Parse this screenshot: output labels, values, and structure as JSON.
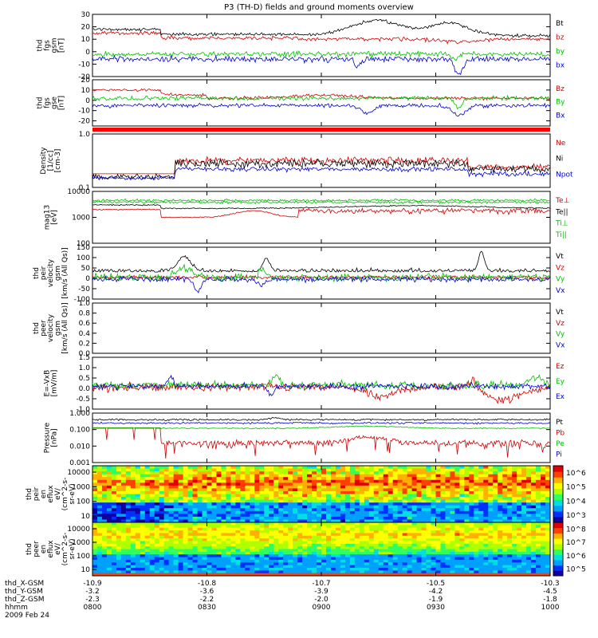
{
  "chart_data": {
    "type": "line",
    "title": "P3 (TH-D) fields and ground moments overview",
    "x_time_range": [
      "0800",
      "1000"
    ],
    "panels": [
      {
        "key": "fgs_gsm",
        "ylabel": [
          "thd",
          "fgs",
          "gsm",
          "[nT]"
        ],
        "ylim": [
          -20,
          30
        ],
        "yticks": [
          "-20",
          "-10",
          "0",
          "10",
          "20",
          "30"
        ],
        "series": [
          {
            "name": "Bt",
            "color": "#000000",
            "base": 18,
            "noise": 1.5,
            "kind": "bt"
          },
          {
            "name": "bz",
            "color": "#d00000",
            "base": 12,
            "noise": 2,
            "kind": "bz"
          },
          {
            "name": "by",
            "color": "#00c000",
            "base": -3,
            "noise": 2,
            "kind": "by"
          },
          {
            "name": "bx",
            "color": "#0000d0",
            "base": -6,
            "noise": 2.5,
            "kind": "bx"
          }
        ]
      },
      {
        "key": "fgs_gse",
        "ylabel": [
          "thd",
          "fgs",
          "gse",
          "[nT]"
        ],
        "ylim": [
          -25,
          20
        ],
        "yticks": [
          "-20",
          "-10",
          "0",
          "10",
          "20"
        ],
        "series": [
          {
            "name": "Bz",
            "color": "#d00000",
            "base": 10,
            "noise": 1.5,
            "kind": "bz2"
          },
          {
            "name": "By",
            "color": "#00c000",
            "base": 3,
            "noise": 2,
            "kind": "by2"
          },
          {
            "name": "Bx",
            "color": "#0000d0",
            "base": -5,
            "noise": 2,
            "kind": "bx2"
          }
        ]
      },
      {
        "key": "density",
        "ylabel": [
          "Density",
          "[1/cc]",
          "[cm-3]"
        ],
        "ylim": [
          0.1,
          1.0
        ],
        "log": true,
        "yticks": [
          "0.1",
          "1.0"
        ],
        "series": [
          {
            "name": "Ne",
            "color": "#d00000",
            "kind": "dens_e"
          },
          {
            "name": "Ni",
            "color": "#000000",
            "kind": "dens_i"
          },
          {
            "name": "Npot",
            "color": "#0000d0",
            "kind": "dens_p"
          }
        ]
      },
      {
        "key": "temp",
        "ylabel": [
          "mag13",
          "[eV]"
        ],
        "ylim": [
          100,
          10000
        ],
        "log": true,
        "yticks": [
          "100",
          "1000",
          "10000"
        ],
        "series": [
          {
            "name": "Te⊥",
            "color": "#d00000",
            "kind": "te_perp"
          },
          {
            "name": "Te||",
            "color": "#000000",
            "kind": "te_par"
          },
          {
            "name": "Ti⊥",
            "color": "#00c000",
            "kind": "ti_perp"
          },
          {
            "name": "Ti||",
            "color": "#00c000",
            "kind": "ti_par"
          }
        ]
      },
      {
        "key": "ion_vel",
        "ylabel": [
          "thd",
          "peir",
          "velocity",
          "gsm",
          "[km/s (All Qs)]"
        ],
        "ylim": [
          -100,
          150
        ],
        "yticks": [
          "-100",
          "-50",
          "0",
          "50",
          "100",
          "150"
        ],
        "series": [
          {
            "name": "Vt",
            "color": "#000000",
            "kind": "vt"
          },
          {
            "name": "Vz",
            "color": "#d00000",
            "kind": "vz"
          },
          {
            "name": "Vy",
            "color": "#00c000",
            "kind": "vy"
          },
          {
            "name": "Vx",
            "color": "#0000d0",
            "kind": "vx"
          }
        ]
      },
      {
        "key": "ele_vel",
        "ylabel": [
          "thd",
          "peer",
          "velocity",
          "gsm",
          "[km/s (All Qs)]"
        ],
        "ylim": [
          0,
          1.0
        ],
        "yticks": [
          "0.0",
          "0.2",
          "0.4",
          "0.6",
          "0.8",
          "1.0"
        ],
        "series": [
          {
            "name": "Vt",
            "color": "#000000"
          },
          {
            "name": "Vz",
            "color": "#d00000"
          },
          {
            "name": "Vy",
            "color": "#00c000"
          },
          {
            "name": "Vx",
            "color": "#0000d0"
          }
        ]
      },
      {
        "key": "efield",
        "ylabel": [
          "E=-VxB",
          "[mV/m]"
        ],
        "ylim": [
          -1.0,
          1.5
        ],
        "yticks": [
          "-1.0",
          "-0.5",
          "0.0",
          "0.5",
          "1.0",
          "1.5"
        ],
        "series": [
          {
            "name": "Ez",
            "color": "#d00000",
            "kind": "ez"
          },
          {
            "name": "Ey",
            "color": "#00c000",
            "kind": "ey"
          },
          {
            "name": "Ex",
            "color": "#0000d0",
            "kind": "ex"
          }
        ]
      },
      {
        "key": "pressure",
        "ylabel": [
          "Pressure",
          "[nPa]"
        ],
        "ylim": [
          0.001,
          1.0
        ],
        "log": true,
        "yticks": [
          "0.001",
          "0.010",
          "0.100",
          "1.000"
        ],
        "series": [
          {
            "name": "Pt",
            "color": "#000000",
            "kind": "pt"
          },
          {
            "name": "Pb",
            "color": "#d00000",
            "kind": "pb"
          },
          {
            "name": "Pe",
            "color": "#00c000",
            "kind": "pe"
          },
          {
            "name": "Pi",
            "color": "#0000d0",
            "kind": "pi"
          }
        ]
      },
      {
        "key": "ion_spec",
        "type": "heatmap",
        "ylabel": [
          "thd",
          "peir",
          "en",
          "eflux",
          "eV/",
          "(cm^2-s-",
          "sr-eV)"
        ],
        "yticks": [
          "10",
          "100",
          "1000",
          "10000"
        ],
        "colorbar": [
          "10^3",
          "10^4",
          "10^5",
          "10^6"
        ]
      },
      {
        "key": "ele_spec",
        "type": "heatmap",
        "ylabel": [
          "thd",
          "peer",
          "en",
          "eflux",
          "eV/",
          "(cm^2-s-",
          "sr-eV)"
        ],
        "yticks": [
          "10",
          "100",
          "1000",
          "10000"
        ],
        "colorbar": [
          "10^5",
          "10^6",
          "10^7",
          "10^8"
        ]
      }
    ],
    "x_axis": {
      "labels": [
        "thd_X-GSM",
        "thd_Y-GSM",
        "thd_Z-GSM",
        "hhmm",
        "2009 Feb 24"
      ],
      "ticks": [
        {
          "x": "-10.9",
          "y": "-3.2",
          "z": "-2.3",
          "t": "0800"
        },
        {
          "x": "-10.8",
          "y": "-3.6",
          "z": "-2.2",
          "t": "0830"
        },
        {
          "x": "-10.7",
          "y": "-3.9",
          "z": "-2.0",
          "t": "0900"
        },
        {
          "x": "-10.5",
          "y": "-4.2",
          "z": "-1.9",
          "t": "0930"
        },
        {
          "x": "-10.3",
          "y": "-4.5",
          "z": "-1.8",
          "t": "1000"
        }
      ]
    }
  }
}
